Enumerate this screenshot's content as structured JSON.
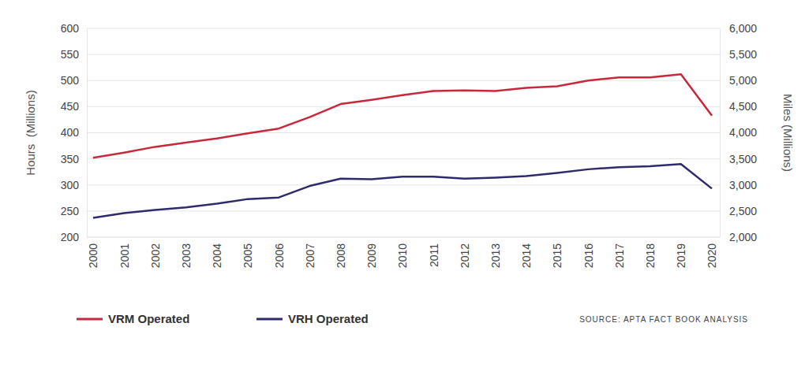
{
  "chart_data": {
    "type": "line",
    "y_label": "Hours  (Millions)",
    "y2_label": "Miles (Millions)",
    "annotations": [
      "SOURCE: APTA FACT BOOK ANALYSIS"
    ],
    "categories": [
      "2000",
      "2001",
      "2002",
      "2003",
      "2004",
      "2005",
      "2006",
      "2007",
      "2008",
      "2009",
      "2010",
      "2011",
      "2012",
      "2013",
      "2014",
      "2015",
      "2016",
      "2017",
      "2018",
      "2019",
      "2020"
    ],
    "series": [
      {
        "name": "VRM Operated",
        "color": "#c8283c",
        "axis": "y2",
        "values": [
          3520,
          3620,
          3730,
          3810,
          3890,
          3990,
          4080,
          4300,
          4550,
          4630,
          4720,
          4800,
          4810,
          4800,
          4860,
          4890,
          5000,
          5060,
          5060,
          5120,
          4330
        ]
      },
      {
        "name": "VRH Operated",
        "color": "#2e2a6e",
        "values": [
          237,
          246,
          252,
          257,
          264,
          273,
          276,
          298,
          312,
          311,
          316,
          316,
          312,
          314,
          317,
          323,
          330,
          334,
          336,
          340,
          293
        ]
      }
    ],
    "ylim": [
      200,
      600
    ],
    "yticks": [
      200,
      250,
      300,
      350,
      400,
      450,
      500,
      550,
      600
    ],
    "y2lim": [
      2000,
      6000
    ],
    "y2ticks": [
      {
        "value": 2000,
        "label": "2,000"
      },
      {
        "value": 2500,
        "label": "2,500"
      },
      {
        "value": 3000,
        "label": "3,000"
      },
      {
        "value": 3500,
        "label": "3,500"
      },
      {
        "value": 4000,
        "label": "4,000"
      },
      {
        "value": 4500,
        "label": "4,500"
      },
      {
        "value": 5000,
        "label": "5,000"
      },
      {
        "value": 5500,
        "label": "5,500"
      },
      {
        "value": 6000,
        "label": "6,000"
      }
    ],
    "grid": true,
    "legend": "bottom"
  }
}
